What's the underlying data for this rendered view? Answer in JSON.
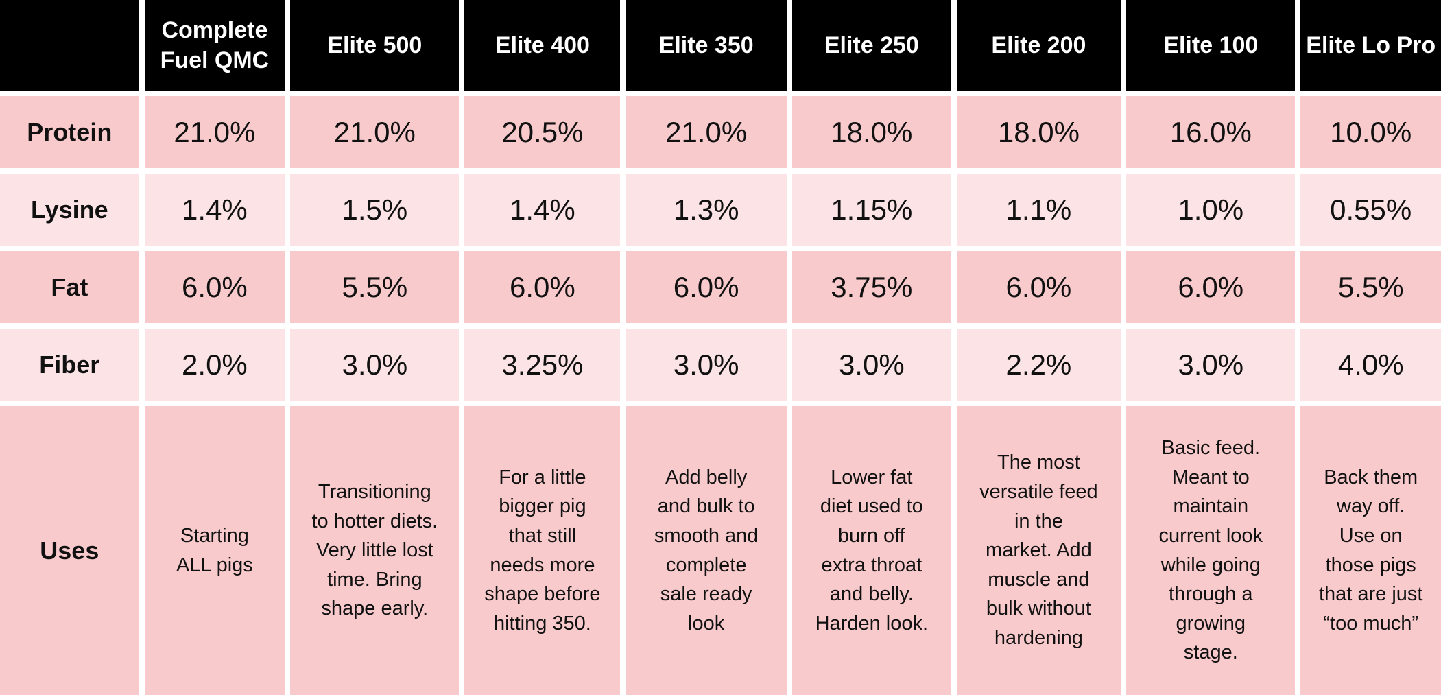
{
  "chart_data": {
    "type": "table",
    "title": "Feed product comparison table",
    "corner_label": "",
    "columns": [
      "Complete Fuel QMC",
      "Elite 500",
      "Elite 400",
      "Elite 350",
      "Elite 250",
      "Elite 200",
      "Elite 100",
      "Elite Lo Pro"
    ],
    "rows": [
      {
        "label": "Protein",
        "values": [
          "21.0%",
          "21.0%",
          "20.5%",
          "21.0%",
          "18.0%",
          "18.0%",
          "16.0%",
          "10.0%"
        ]
      },
      {
        "label": "Lysine",
        "values": [
          "1.4%",
          "1.5%",
          "1.4%",
          "1.3%",
          "1.15%",
          "1.1%",
          "1.0%",
          "0.55%"
        ]
      },
      {
        "label": "Fat",
        "values": [
          "6.0%",
          "5.5%",
          "6.0%",
          "6.0%",
          "3.75%",
          "6.0%",
          "6.0%",
          "5.5%"
        ]
      },
      {
        "label": "Fiber",
        "values": [
          "2.0%",
          "3.0%",
          "3.25%",
          "3.0%",
          "3.0%",
          "2.2%",
          "3.0%",
          "4.0%"
        ]
      },
      {
        "label": "Uses",
        "values": [
          "Starting\nALL pigs",
          "Transitioning\nto hotter diets.\nVery little lost\ntime. Bring\nshape early.",
          "For a little\nbigger pig\nthat still\nneeds more\nshape before\nhitting 350.",
          "Add belly\nand bulk to\nsmooth and\ncomplete\nsale ready\nlook",
          "Lower fat\ndiet used to\nburn off\nextra throat\nand belly.\nHarden look.",
          "The most\nversatile feed\nin the\nmarket. Add\nmuscle and\nbulk without\nhardening",
          "Basic feed.\nMeant to\nmaintain\ncurrent look\nwhile going\nthrough a\ngrowing\nstage.",
          "Back them\nway off.\nUse on\nthose pigs\nthat are just\n“too much”"
        ]
      }
    ]
  },
  "colors": {
    "header-bg": "#000000",
    "header-text": "#ffffff",
    "row-dark": "#f8cacc",
    "row-light": "#fce4e6",
    "gridline": "#ffffff",
    "cell-text": "#111111"
  }
}
